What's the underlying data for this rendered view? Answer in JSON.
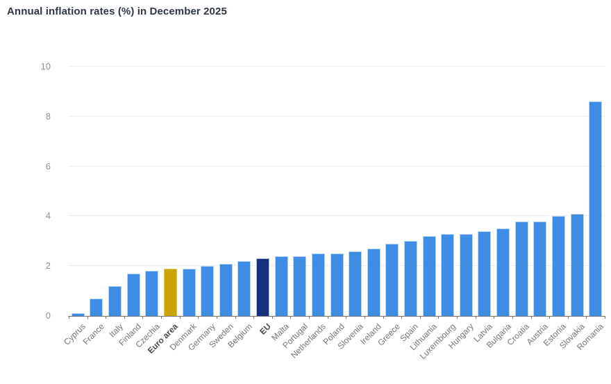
{
  "page": {
    "title": "Annual inflation rates (%) in December 2025"
  },
  "chart_data": {
    "type": "bar",
    "title": "Annual inflation rates (%) in December 2025",
    "xlabel": "",
    "ylabel": "",
    "categories": [
      "Cyprus",
      "France",
      "Italy",
      "Finland",
      "Czechia",
      "Euro area",
      "Denmark",
      "Germany",
      "Sweden",
      "Belgium",
      "EU",
      "Malta",
      "Portugal",
      "Netherlands",
      "Poland",
      "Slovenia",
      "Ireland",
      "Greece",
      "Spain",
      "Lithuania",
      "Luxembourg",
      "Hungary",
      "Latvia",
      "Bulgaria",
      "Croatia",
      "Austria",
      "Estonia",
      "Slovakia",
      "Romania"
    ],
    "values": [
      0.1,
      0.7,
      1.2,
      1.7,
      1.8,
      1.9,
      1.9,
      2.0,
      2.1,
      2.2,
      2.3,
      2.4,
      2.4,
      2.5,
      2.5,
      2.6,
      2.7,
      2.9,
      3.0,
      3.2,
      3.3,
      3.3,
      3.4,
      3.5,
      3.8,
      3.8,
      4.0,
      4.1,
      8.6
    ],
    "bold_categories": [
      "Euro area",
      "EU"
    ],
    "ylim": [
      0,
      10
    ],
    "yticks": [
      0,
      2,
      4,
      6,
      8,
      10
    ],
    "grid": true,
    "legend": "none",
    "colors": {
      "default_bar": "#3e8de5",
      "default_border": "#b7d6f3",
      "euro_area_bar": "#cca305",
      "euro_area_border": "#e0c55e",
      "eu_bar": "#16307e",
      "eu_border": "#aebbdc",
      "gridline": "#e9eef5",
      "axis_line": "#707070",
      "tick": "#707070",
      "y_label": "#8f8f8f",
      "x_label": "#757575",
      "x_label_bold": "#4a4a4a",
      "title": "#2e3744"
    }
  }
}
